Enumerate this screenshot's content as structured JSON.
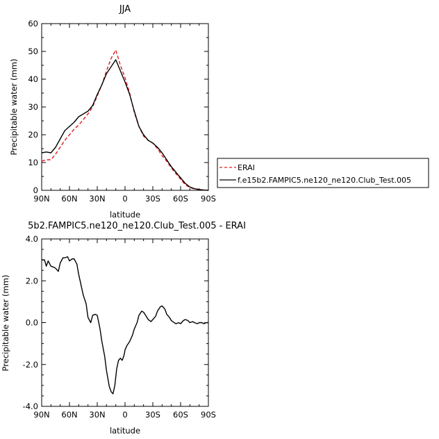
{
  "chart_data": [
    {
      "type": "line",
      "title": "JJA",
      "xlabel": "latitude",
      "ylabel": "Precipitable water (mm)",
      "xlim": [
        90,
        -90
      ],
      "ylim": [
        0,
        60
      ],
      "x_ticks": [
        90,
        60,
        30,
        0,
        -30,
        -60,
        -90
      ],
      "x_tick_labels": [
        "90N",
        "60N",
        "30N",
        "0",
        "30S",
        "60S",
        "90S"
      ],
      "y_ticks": [
        0,
        10,
        20,
        30,
        40,
        50,
        60
      ],
      "y_tick_labels": [
        "0",
        "10",
        "20",
        "30",
        "40",
        "50",
        "60"
      ],
      "grid": false,
      "legend_position": "right",
      "series": [
        {
          "name": "ERAI",
          "color": "#e31a1c",
          "dash": "dashed",
          "x": [
            90,
            85,
            80,
            75,
            70,
            65,
            60,
            55,
            50,
            45,
            40,
            35,
            30,
            25,
            20,
            15,
            10,
            5,
            0,
            -5,
            -10,
            -15,
            -20,
            -25,
            -30,
            -35,
            -40,
            -45,
            -50,
            -55,
            -60,
            -65,
            -70,
            -75,
            -80,
            -85,
            -90
          ],
          "y": [
            10.5,
            11.0,
            11.0,
            13.0,
            15.5,
            18.0,
            20.0,
            22.0,
            23.5,
            25.5,
            27.5,
            30.0,
            34.0,
            38.0,
            43.0,
            47.5,
            50.5,
            45.0,
            40.5,
            35.0,
            28.0,
            23.0,
            19.5,
            18.0,
            17.0,
            15.0,
            12.5,
            10.5,
            8.0,
            6.0,
            4.0,
            2.0,
            1.0,
            0.5,
            0.2,
            0.1,
            0.0
          ]
        },
        {
          "name": "f.e15b2.FAMPIC5.ne120_ne120.Club_Test.005",
          "color": "#000000",
          "dash": "solid",
          "x": [
            90,
            85,
            80,
            75,
            70,
            65,
            60,
            55,
            50,
            45,
            40,
            35,
            30,
            25,
            20,
            15,
            10,
            5,
            0,
            -5,
            -10,
            -15,
            -20,
            -25,
            -30,
            -35,
            -40,
            -45,
            -50,
            -55,
            -60,
            -65,
            -70,
            -75,
            -80,
            -85,
            -90
          ],
          "y": [
            13.5,
            13.8,
            13.5,
            15.5,
            18.5,
            21.5,
            23.0,
            24.5,
            26.5,
            27.5,
            28.5,
            30.5,
            34.5,
            38.0,
            42.0,
            44.5,
            47.0,
            43.0,
            39.0,
            34.5,
            28.5,
            23.0,
            20.0,
            18.0,
            17.0,
            15.5,
            13.5,
            11.0,
            8.5,
            6.5,
            4.5,
            2.5,
            1.2,
            0.6,
            0.3,
            0.1,
            0.0
          ]
        }
      ]
    },
    {
      "type": "line",
      "title": "5b2.FAMPIC5.ne120_ne120.Club_Test.005 - ERAI",
      "xlabel": "latitude",
      "ylabel": "Precipitable water (mm)",
      "xlim": [
        90,
        -90
      ],
      "ylim": [
        -4.0,
        4.0
      ],
      "x_ticks": [
        90,
        60,
        30,
        0,
        -30,
        -60,
        -90
      ],
      "x_tick_labels": [
        "90N",
        "60N",
        "30N",
        "0",
        "30S",
        "60S",
        "90S"
      ],
      "y_ticks": [
        -4.0,
        -2.0,
        0.0,
        2.0,
        4.0
      ],
      "y_tick_labels": [
        "-4.0",
        "-2.0",
        "0.0",
        "2.0",
        "4.0"
      ],
      "grid": false,
      "series": [
        {
          "color": "#000000",
          "dash": "solid",
          "x": [
            90,
            87,
            85,
            83,
            80,
            77,
            75,
            72,
            70,
            67,
            65,
            62,
            60,
            57,
            55,
            52,
            50,
            47,
            45,
            42,
            40,
            37,
            35,
            32,
            30,
            27,
            25,
            22,
            20,
            17,
            15,
            13,
            11,
            9,
            7,
            5,
            3,
            1,
            0,
            -2,
            -5,
            -8,
            -10,
            -13,
            -15,
            -18,
            -20,
            -23,
            -25,
            -28,
            -30,
            -33,
            -35,
            -38,
            -40,
            -43,
            -45,
            -48,
            -50,
            -53,
            -55,
            -58,
            -60,
            -63,
            -65,
            -68,
            -70,
            -73,
            -75,
            -78,
            -80,
            -83,
            -85,
            -88,
            -90
          ],
          "y": [
            3.0,
            3.0,
            2.7,
            2.95,
            2.7,
            2.65,
            2.6,
            2.45,
            2.85,
            3.1,
            3.1,
            3.15,
            2.95,
            3.05,
            3.05,
            2.8,
            2.3,
            1.7,
            1.3,
            0.9,
            0.25,
            0.0,
            0.35,
            0.4,
            0.35,
            -0.3,
            -0.9,
            -1.6,
            -2.3,
            -3.05,
            -3.3,
            -3.4,
            -3.0,
            -2.2,
            -1.8,
            -1.7,
            -1.8,
            -1.55,
            -1.3,
            -1.1,
            -0.9,
            -0.6,
            -0.3,
            0.0,
            0.35,
            0.55,
            0.5,
            0.3,
            0.15,
            0.05,
            0.15,
            0.3,
            0.55,
            0.75,
            0.8,
            0.65,
            0.4,
            0.25,
            0.1,
            0.0,
            -0.05,
            0.0,
            -0.05,
            0.1,
            0.15,
            0.1,
            0.0,
            0.05,
            0.0,
            -0.05,
            0.0,
            0.0,
            -0.05,
            0.0,
            0.0
          ]
        }
      ]
    }
  ]
}
